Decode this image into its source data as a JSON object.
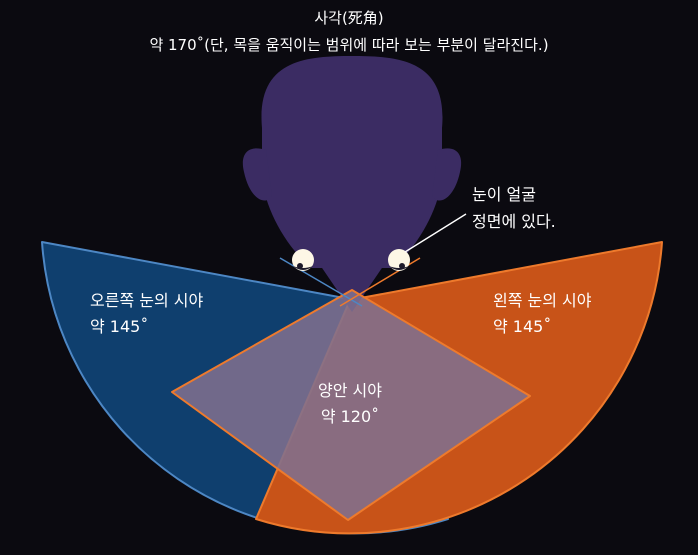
{
  "title": "사각(死角)",
  "subtitle": "약 170˚(단, 목을 움직이는 범위에 따라 보는 부분이 달라진다.)",
  "annotation": {
    "line1": "눈이 얼굴",
    "line2": "정면에 있다."
  },
  "right_eye_field": {
    "label": "오른쪽 눈의 시야",
    "angle": "약 145˚"
  },
  "left_eye_field": {
    "label": "왼쪽 눈의 시야",
    "angle": "약 145˚"
  },
  "binocular_field": {
    "label": "양안 시야",
    "angle": "약 120˚"
  },
  "colors": {
    "background": "#0b0a10",
    "head": "#3b2c63",
    "right_field_fill": "#0f3f6e",
    "right_field_stroke": "#4d87c4",
    "left_field_fill": "#c85318",
    "left_field_stroke": "#ee7a2c",
    "binocular_fill": "#80708e",
    "text": "#ffffff"
  }
}
